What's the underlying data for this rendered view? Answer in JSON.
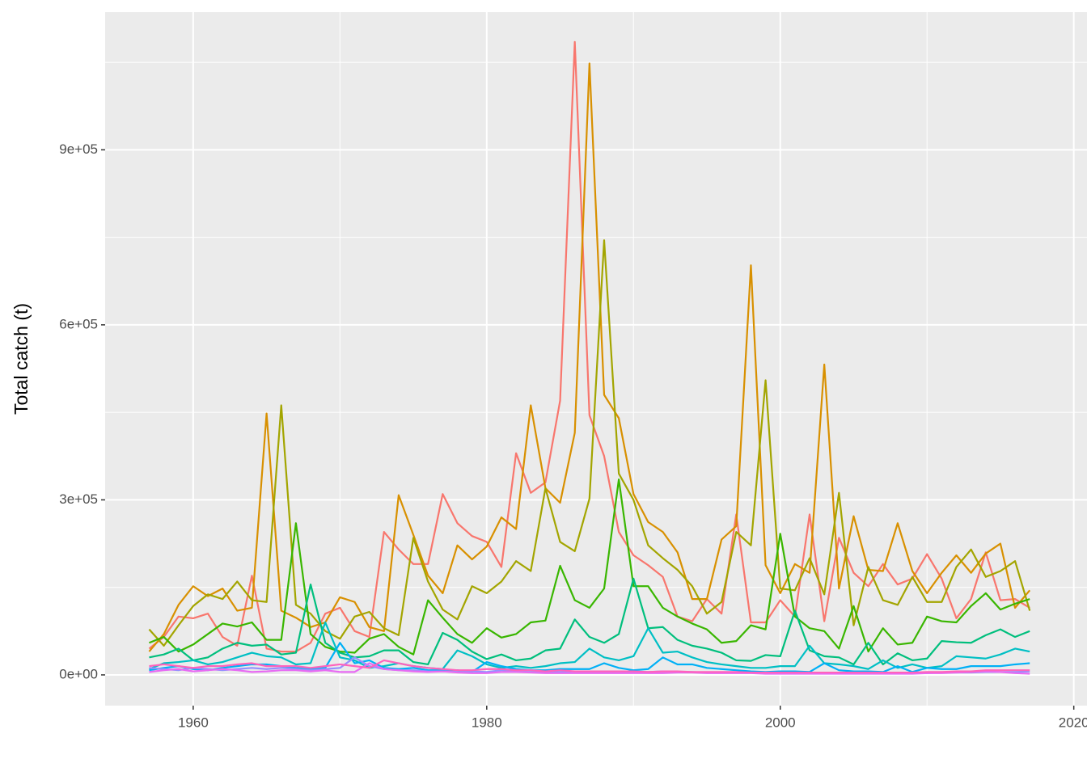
{
  "chart_data": {
    "type": "line",
    "y_label": "Total catch (t)",
    "x": [
      1957,
      1958,
      1959,
      1960,
      1961,
      1962,
      1963,
      1964,
      1965,
      1966,
      1967,
      1968,
      1969,
      1970,
      1971,
      1972,
      1973,
      1974,
      1975,
      1976,
      1977,
      1978,
      1979,
      1980,
      1981,
      1982,
      1983,
      1984,
      1985,
      1986,
      1987,
      1988,
      1989,
      1990,
      1991,
      1992,
      1993,
      1994,
      1995,
      1996,
      1997,
      1998,
      1999,
      2000,
      2001,
      2002,
      2003,
      2004,
      2005,
      2006,
      2007,
      2008,
      2009,
      2010,
      2011,
      2012,
      2013,
      2014,
      2015,
      2016,
      2017
    ],
    "xlim": [
      1954,
      2020.9
    ],
    "xticks": [
      1960,
      1980,
      2000,
      2020
    ],
    "ylim": [
      -52700,
      1136000
    ],
    "yticks": [
      {
        "value": 0,
        "label": "0e+00"
      },
      {
        "value": 300000,
        "label": "3e+05"
      },
      {
        "value": 600000,
        "label": "6e+05"
      },
      {
        "value": 900000,
        "label": "9e+05"
      }
    ],
    "grid": true,
    "series": [
      {
        "color": "#F8766D",
        "values": [
          45000,
          65000,
          100000,
          97000,
          105000,
          65000,
          50000,
          170000,
          45000,
          40000,
          40000,
          55000,
          105000,
          115000,
          75000,
          65000,
          245000,
          215000,
          190000,
          190000,
          310000,
          260000,
          238000,
          228000,
          185000,
          380000,
          312000,
          330000,
          470000,
          1085000,
          445000,
          375000,
          245000,
          205000,
          188000,
          168000,
          100000,
          92000,
          130000,
          105000,
          275000,
          90000,
          90000,
          128000,
          100000,
          275000,
          92000,
          235000,
          175000,
          152000,
          190000,
          155000,
          165000,
          207000,
          165000,
          97000,
          130000,
          210000,
          128000,
          130000,
          115000
        ]
      },
      {
        "color": "#D89000",
        "values": [
          40000,
          70000,
          120000,
          152000,
          135000,
          148000,
          110000,
          115000,
          448000,
          110000,
          98000,
          82000,
          90000,
          133000,
          125000,
          82000,
          75000,
          308000,
          240000,
          170000,
          140000,
          222000,
          198000,
          220000,
          270000,
          250000,
          462000,
          320000,
          295000,
          415000,
          1048000,
          480000,
          440000,
          310000,
          262000,
          245000,
          210000,
          130000,
          130000,
          232000,
          255000,
          702000,
          188000,
          140000,
          190000,
          175000,
          532000,
          148000,
          272000,
          180000,
          178000,
          260000,
          178000,
          140000,
          175000,
          205000,
          175000,
          208000,
          225000,
          115000,
          145000
        ]
      },
      {
        "color": "#A3A500",
        "values": [
          78000,
          50000,
          85000,
          118000,
          138000,
          130000,
          160000,
          128000,
          125000,
          462000,
          120000,
          105000,
          75000,
          62000,
          100000,
          108000,
          80000,
          68000,
          235000,
          160000,
          112000,
          95000,
          152000,
          140000,
          160000,
          195000,
          178000,
          320000,
          228000,
          212000,
          302000,
          745000,
          345000,
          300000,
          222000,
          200000,
          180000,
          152000,
          105000,
          125000,
          245000,
          222000,
          505000,
          148000,
          145000,
          200000,
          138000,
          312000,
          85000,
          185000,
          128000,
          120000,
          168000,
          125000,
          125000,
          185000,
          215000,
          168000,
          178000,
          195000,
          110000
        ]
      },
      {
        "color": "#39B600",
        "values": [
          55000,
          65000,
          40000,
          52000,
          70000,
          88000,
          83000,
          90000,
          60000,
          60000,
          260000,
          70000,
          48000,
          40000,
          38000,
          62000,
          70000,
          48000,
          35000,
          128000,
          98000,
          70000,
          55000,
          80000,
          64000,
          70000,
          90000,
          93000,
          187000,
          128000,
          115000,
          148000,
          335000,
          152000,
          152000,
          115000,
          100000,
          88000,
          78000,
          55000,
          58000,
          85000,
          78000,
          242000,
          100000,
          80000,
          75000,
          45000,
          118000,
          40000,
          80000,
          52000,
          55000,
          100000,
          92000,
          90000,
          118000,
          140000,
          112000,
          122000,
          130000
        ]
      },
      {
        "color": "#00BF7D",
        "values": [
          30000,
          35000,
          45000,
          25000,
          30000,
          45000,
          55000,
          50000,
          52000,
          35000,
          38000,
          155000,
          55000,
          38000,
          30000,
          32000,
          42000,
          42000,
          22000,
          18000,
          72000,
          60000,
          40000,
          27000,
          35000,
          25000,
          28000,
          42000,
          45000,
          95000,
          65000,
          55000,
          70000,
          165000,
          80000,
          82000,
          60000,
          50000,
          45000,
          38000,
          25000,
          24000,
          34000,
          32000,
          110000,
          42000,
          32000,
          30000,
          18000,
          55000,
          18000,
          37000,
          25000,
          28000,
          58000,
          56000,
          55000,
          68000,
          78000,
          65000,
          75000
        ]
      },
      {
        "color": "#00BFC4",
        "values": [
          10000,
          20000,
          22000,
          25000,
          18000,
          22000,
          30000,
          38000,
          32000,
          30000,
          18000,
          20000,
          90000,
          30000,
          25000,
          12000,
          15000,
          20000,
          15000,
          12000,
          10000,
          42000,
          32000,
          18000,
          12000,
          15000,
          12000,
          15000,
          20000,
          22000,
          45000,
          30000,
          25000,
          32000,
          80000,
          38000,
          40000,
          30000,
          22000,
          18000,
          15000,
          12000,
          12000,
          15000,
          15000,
          50000,
          20000,
          18000,
          15000,
          10000,
          25000,
          12000,
          18000,
          12000,
          15000,
          32000,
          30000,
          28000,
          35000,
          45000,
          40000
        ]
      },
      {
        "color": "#00B0F6",
        "values": [
          8000,
          12000,
          15000,
          10000,
          8000,
          12000,
          15000,
          18000,
          18000,
          15000,
          12000,
          10000,
          12000,
          55000,
          20000,
          25000,
          12000,
          10000,
          12000,
          8000,
          8000,
          8000,
          5000,
          22000,
          15000,
          10000,
          8000,
          8000,
          10000,
          10000,
          10000,
          20000,
          12000,
          8000,
          10000,
          30000,
          18000,
          18000,
          12000,
          10000,
          8000,
          6000,
          5000,
          6000,
          6000,
          5000,
          20000,
          8000,
          6000,
          6000,
          5000,
          15000,
          5000,
          12000,
          10000,
          10000,
          15000,
          15000,
          15000,
          18000,
          20000
        ]
      },
      {
        "color": "#9590FF",
        "values": [
          12000,
          10000,
          8000,
          12000,
          10000,
          8000,
          10000,
          12000,
          10000,
          12000,
          10000,
          8000,
          10000,
          12000,
          30000,
          15000,
          10000,
          8000,
          8000,
          6000,
          6000,
          5000,
          6000,
          5000,
          8000,
          6000,
          5000,
          5000,
          5000,
          6000,
          5000,
          5000,
          6000,
          5000,
          5000,
          6000,
          5000,
          5000,
          4000,
          4000,
          4000,
          4000,
          3000,
          4000,
          4000,
          3000,
          3000,
          3000,
          3000,
          3000,
          3000,
          3000,
          3000,
          3000,
          4000,
          4000,
          4000,
          5000,
          5000,
          5000,
          6000
        ]
      },
      {
        "color": "#E76BF3",
        "values": [
          5000,
          8000,
          10000,
          6000,
          8000,
          10000,
          8000,
          5000,
          6000,
          8000,
          8000,
          6000,
          8000,
          5000,
          5000,
          20000,
          10000,
          8000,
          6000,
          5000,
          6000,
          4000,
          3000,
          3000,
          5000,
          5000,
          4000,
          3000,
          3000,
          3000,
          3000,
          3000,
          3000,
          3000,
          3000,
          3000,
          4000,
          4000,
          3000,
          3000,
          3000,
          3000,
          2000,
          2000,
          2000,
          2000,
          2000,
          2000,
          2000,
          2000,
          2000,
          2000,
          2000,
          3000,
          3000,
          4000,
          5000,
          6000,
          5000,
          3000,
          2000
        ]
      },
      {
        "color": "#FF62BC",
        "values": [
          15000,
          18000,
          15000,
          12000,
          15000,
          15000,
          18000,
          20000,
          15000,
          15000,
          15000,
          12000,
          15000,
          18000,
          15000,
          12000,
          25000,
          20000,
          15000,
          12000,
          10000,
          8000,
          8000,
          10000,
          10000,
          8000,
          8000,
          6000,
          8000,
          6000,
          6000,
          6000,
          6000,
          6000,
          5000,
          6000,
          6000,
          5000,
          5000,
          5000,
          5000,
          4000,
          4000,
          4000,
          4000,
          4000,
          4000,
          4000,
          4000,
          4000,
          4000,
          4000,
          4000,
          5000,
          5000,
          6000,
          6000,
          8000,
          8000,
          8000,
          8000
        ]
      }
    ]
  }
}
